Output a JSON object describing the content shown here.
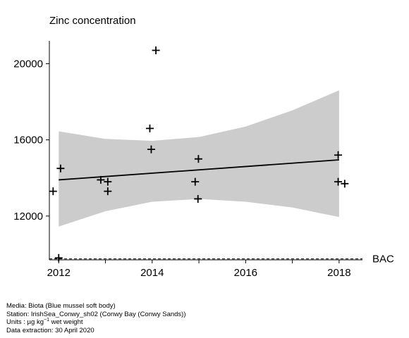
{
  "chart_data": {
    "type": "scatter",
    "title": "Zinc concentration",
    "xlabel": "",
    "ylabel": "",
    "xlim": [
      2011.8,
      2018.5
    ],
    "ylim": [
      9700,
      21200
    ],
    "xticks": [
      2012,
      2014,
      2016,
      2018
    ],
    "xtick_labels": [
      "2012",
      "2014",
      "2016",
      "2018"
    ],
    "yticks": [
      12000,
      16000,
      20000
    ],
    "ytick_labels": [
      "12000",
      "16000",
      "20000"
    ],
    "grid": false,
    "legend": "none",
    "points": [
      {
        "x": 2011.88,
        "y": 13300
      },
      {
        "x": 2012.0,
        "y": 9800
      },
      {
        "x": 2012.04,
        "y": 14500
      },
      {
        "x": 2012.9,
        "y": 13900
      },
      {
        "x": 2013.05,
        "y": 13800
      },
      {
        "x": 2013.05,
        "y": 13300
      },
      {
        "x": 2013.95,
        "y": 16600
      },
      {
        "x": 2013.98,
        "y": 15500
      },
      {
        "x": 2014.08,
        "y": 20700
      },
      {
        "x": 2014.92,
        "y": 13800
      },
      {
        "x": 2014.98,
        "y": 12900
      },
      {
        "x": 2014.99,
        "y": 15000
      },
      {
        "x": 2017.98,
        "y": 15200
      },
      {
        "x": 2017.98,
        "y": 13800
      },
      {
        "x": 2018.12,
        "y": 13700
      }
    ],
    "trend": {
      "x": [
        2012.0,
        2018.0
      ],
      "y": [
        13900,
        14950
      ]
    },
    "confidence_band": {
      "x": [
        2012.0,
        2013.0,
        2014.0,
        2015.0,
        2016.0,
        2017.0,
        2018.0
      ],
      "lower": [
        11450,
        12250,
        12750,
        12900,
        12750,
        12450,
        11950
      ],
      "upper": [
        16450,
        16050,
        15950,
        16150,
        16700,
        17550,
        18600
      ]
    },
    "reference_line": {
      "label": "BAC",
      "y": 9750,
      "style": "dashed"
    },
    "colors": {
      "band": "#cccccc",
      "line": "#000000",
      "points": "#000000"
    }
  },
  "footer": {
    "media": "Media: Biota (Blue mussel soft body)",
    "station": "Station: IrishSea_Conwy_sh02 (Conwy Bay (Conwy Sands))",
    "units_prefix": "Units : µg kg",
    "units_exp": "−1",
    "units_suffix": " wet weight",
    "extraction": "Data extraction: 30 April 2020"
  }
}
